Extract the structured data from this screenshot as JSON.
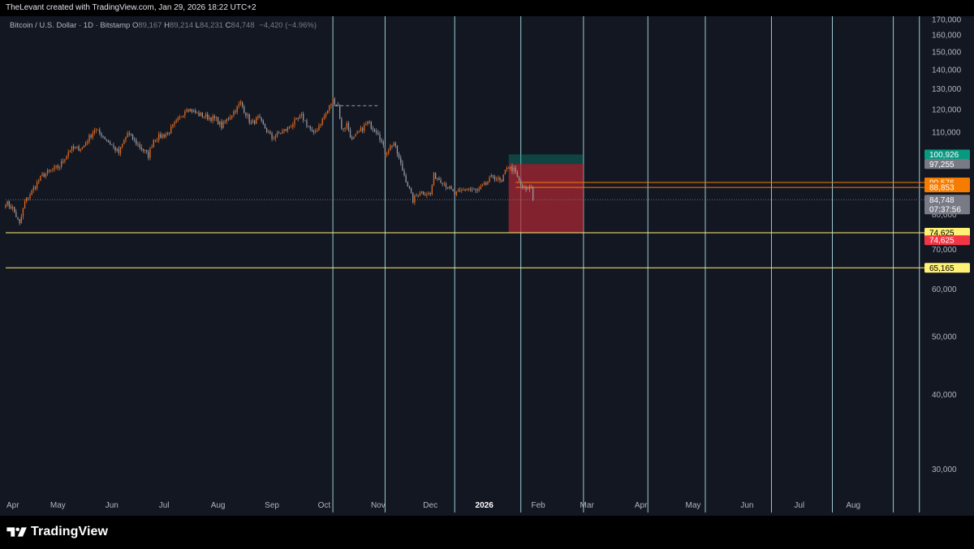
{
  "header": {
    "attribution": "TheLevant created with TradingView.com, Jan 29, 2026 18:22 UTC+2"
  },
  "legend": {
    "symbol": "Bitcoin / U.S. Dollar · 1D · Bitstamp",
    "o_key": "O",
    "o_val": "89,167",
    "h_key": "H",
    "h_val": "89,214",
    "l_key": "L",
    "l_val": "84,231",
    "c_key": "C",
    "c_val": "84,748",
    "change": "−4,420 (−4.96%)"
  },
  "footer": {
    "brand": "TradingView"
  },
  "colors": {
    "background": "#131722",
    "candle_up": "#e06a1d",
    "candle_down": "#9598a1",
    "vertical_lines": "#b2ebf2",
    "support_lines": "#fff176",
    "entry_lines": "#f57c00",
    "stop_zone": "#b22833",
    "target_zone": "#089981"
  },
  "chart_data": {
    "type": "candlestick",
    "symbol": "Bitcoin / U.S. Dollar",
    "interval": "1D",
    "exchange": "Bitstamp",
    "y_axis": {
      "scale": "log",
      "range": [
        27000,
        172000
      ],
      "ticks": [
        "30,000",
        "40,000",
        "50,000",
        "60,000",
        "70,000",
        "80,000",
        "110,000",
        "120,000",
        "130,000",
        "140,000",
        "150,000",
        "160,000",
        "170,000"
      ],
      "tick_values": [
        30000,
        40000,
        50000,
        60000,
        70000,
        80000,
        110000,
        120000,
        130000,
        140000,
        150000,
        160000,
        170000
      ]
    },
    "x_axis": {
      "range": [
        "2025-04-01",
        "2026-09-10"
      ],
      "ticks": [
        {
          "label": "Apr",
          "date": "2025-04-01",
          "bold": false
        },
        {
          "label": "May",
          "date": "2025-05-01",
          "bold": false
        },
        {
          "label": "Jun",
          "date": "2025-06-01",
          "bold": false
        },
        {
          "label": "Jul",
          "date": "2025-07-01",
          "bold": false
        },
        {
          "label": "Aug",
          "date": "2025-08-01",
          "bold": false
        },
        {
          "label": "Sep",
          "date": "2025-09-01",
          "bold": false
        },
        {
          "label": "Oct",
          "date": "2025-10-01",
          "bold": false
        },
        {
          "label": "Nov",
          "date": "2025-11-01",
          "bold": false
        },
        {
          "label": "Dec",
          "date": "2025-12-01",
          "bold": false
        },
        {
          "label": "2026",
          "date": "2026-01-01",
          "bold": true
        },
        {
          "label": "Feb",
          "date": "2026-02-01",
          "bold": false
        },
        {
          "label": "Mar",
          "date": "2026-03-01",
          "bold": false
        },
        {
          "label": "Apr",
          "date": "2026-04-01",
          "bold": false
        },
        {
          "label": "May",
          "date": "2026-05-01",
          "bold": false
        },
        {
          "label": "Jun",
          "date": "2026-06-01",
          "bold": false
        },
        {
          "label": "Jul",
          "date": "2026-07-01",
          "bold": false
        },
        {
          "label": "Aug",
          "date": "2026-08-01",
          "bold": false
        }
      ]
    },
    "price_path": [
      [
        "2025-04-01",
        84000
      ],
      [
        "2025-04-05",
        82000
      ],
      [
        "2025-04-09",
        77000
      ],
      [
        "2025-04-12",
        84000
      ],
      [
        "2025-04-22",
        93000
      ],
      [
        "2025-04-26",
        94500
      ],
      [
        "2025-05-02",
        96500
      ],
      [
        "2025-05-08",
        103000
      ],
      [
        "2025-05-15",
        103500
      ],
      [
        "2025-05-22",
        111000
      ],
      [
        "2025-05-26",
        109000
      ],
      [
        "2025-06-01",
        104500
      ],
      [
        "2025-06-05",
        101500
      ],
      [
        "2025-06-10",
        109500
      ],
      [
        "2025-06-15",
        105500
      ],
      [
        "2025-06-22",
        100500
      ],
      [
        "2025-06-25",
        107000
      ],
      [
        "2025-07-03",
        109500
      ],
      [
        "2025-07-10",
        116000
      ],
      [
        "2025-07-14",
        121000
      ],
      [
        "2025-07-20",
        118000
      ],
      [
        "2025-07-31",
        115500
      ],
      [
        "2025-08-03",
        112500
      ],
      [
        "2025-08-10",
        119000
      ],
      [
        "2025-08-14",
        123000
      ],
      [
        "2025-08-20",
        113500
      ],
      [
        "2025-08-24",
        116000
      ],
      [
        "2025-09-01",
        107500
      ],
      [
        "2025-09-09",
        111000
      ],
      [
        "2025-09-18",
        117000
      ],
      [
        "2025-09-25",
        109000
      ],
      [
        "2025-10-02",
        118000
      ],
      [
        "2025-10-06",
        124500
      ],
      [
        "2025-10-09",
        122000
      ],
      [
        "2025-10-11",
        111000
      ],
      [
        "2025-10-14",
        113500
      ],
      [
        "2025-10-17",
        106500
      ],
      [
        "2025-10-21",
        110000
      ],
      [
        "2025-10-26",
        114000
      ],
      [
        "2025-11-01",
        110000
      ],
      [
        "2025-11-05",
        101500
      ],
      [
        "2025-11-10",
        105500
      ],
      [
        "2025-11-15",
        95000
      ],
      [
        "2025-11-21",
        84500
      ],
      [
        "2025-11-25",
        87500
      ],
      [
        "2025-12-01",
        86500
      ],
      [
        "2025-12-03",
        93000
      ],
      [
        "2025-12-08",
        91000
      ],
      [
        "2025-12-15",
        86500
      ],
      [
        "2025-12-22",
        88500
      ],
      [
        "2025-12-28",
        87500
      ],
      [
        "2026-01-02",
        90000
      ],
      [
        "2026-01-06",
        93000
      ],
      [
        "2026-01-11",
        90500
      ],
      [
        "2026-01-14",
        96500
      ],
      [
        "2026-01-18",
        95000
      ],
      [
        "2026-01-22",
        89500
      ],
      [
        "2026-01-25",
        88000
      ],
      [
        "2026-01-28",
        89200
      ],
      [
        "2026-01-29",
        84748
      ]
    ],
    "last_candle": {
      "open": 89167,
      "high": 89214,
      "low": 84231,
      "close": 84748,
      "change": -4420,
      "change_pct": -4.96
    },
    "horizontal_lines": [
      {
        "price": 74625,
        "color": "#fff176",
        "label": "74,625"
      },
      {
        "price": 65165,
        "color": "#fff176",
        "label": "65,165"
      },
      {
        "price": 90576,
        "color": "#f57c00",
        "start": "2026-01-19",
        "label": "90,576"
      },
      {
        "price": 88853,
        "color": "#f57c00",
        "start": "2026-01-19",
        "label": "88,853"
      }
    ],
    "dashed_line": {
      "price": 121800,
      "start": "2025-10-07",
      "end": "2025-11-01"
    },
    "vertical_lines": [
      "2025-10-06",
      "2025-11-05",
      "2025-12-15",
      "2026-01-22",
      "2026-02-27",
      "2026-04-05",
      "2026-05-08",
      "2026-06-15",
      "2026-07-20",
      "2026-08-24",
      "2026-09-08"
    ],
    "position_tool": {
      "start": "2026-01-15",
      "end": "2026-02-27",
      "target": 100926,
      "entry": 97255,
      "stop": 74625
    },
    "price_labels": [
      {
        "price": 100926,
        "text": "100,926",
        "bg": "#089981",
        "fg": "#ffffff"
      },
      {
        "price": 97255,
        "text": "97,255",
        "bg": "#787b86",
        "fg": "#ffffff"
      },
      {
        "price": 90576,
        "text": "90,576",
        "bg": "#f57c00",
        "fg": "#ffffff"
      },
      {
        "price": 88853,
        "text": "88,853",
        "bg": "#f57c00",
        "fg": "#ffffff"
      },
      {
        "price": 84748,
        "text": "84,748",
        "sub": "07:37:56",
        "bg": "#787b86",
        "fg": "#ffffff"
      },
      {
        "price": 74625,
        "text": "74,625",
        "bg": "#fff176",
        "fg": "#000000"
      },
      {
        "price": 72500,
        "text": "74,625",
        "bg": "#f23645",
        "fg": "#ffffff"
      },
      {
        "price": 65165,
        "text": "65,165",
        "bg": "#fff176",
        "fg": "#000000"
      }
    ]
  }
}
